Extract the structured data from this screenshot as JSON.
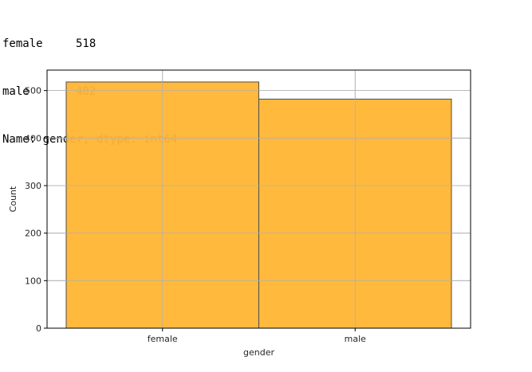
{
  "console_output": {
    "rows": [
      {
        "label": "female",
        "value": "518"
      },
      {
        "label": "male",
        "value": "482"
      }
    ],
    "footer": "Name: gender, dtype: int64"
  },
  "chart_data": {
    "type": "bar",
    "categories": [
      "female",
      "male"
    ],
    "values": [
      518,
      482
    ],
    "title": "",
    "xlabel": "gender",
    "ylabel": "Count",
    "ylim": [
      0,
      543
    ],
    "yticks": [
      0,
      100,
      200,
      300,
      400,
      500
    ],
    "grid": true,
    "bar_color": "#ffb533",
    "edge_color": "#4d4d4d",
    "grid_color": "#b0b0b0"
  }
}
